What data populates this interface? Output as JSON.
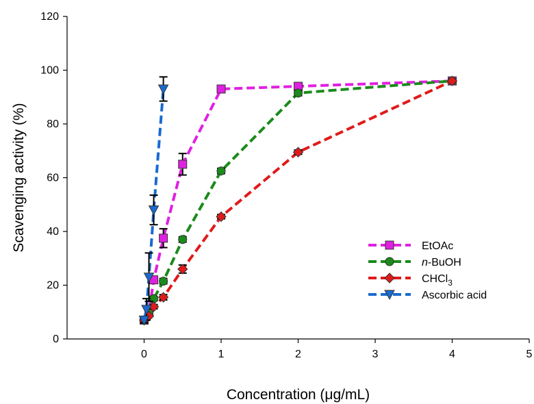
{
  "chart_data": {
    "type": "line",
    "title": "",
    "xlabel": "Concentration (μg/mL)",
    "ylabel": "Scavenging activity (%)",
    "xlim": [
      -1,
      5
    ],
    "ylim": [
      0,
      120
    ],
    "xticks": [
      0,
      1,
      2,
      3,
      4,
      5
    ],
    "yticks": [
      0,
      20,
      40,
      60,
      80,
      100,
      120
    ],
    "grid": false,
    "legend_position": "lower-right",
    "series": [
      {
        "name": "EtOAc",
        "color": "#e020e0",
        "marker": "square",
        "x": [
          0,
          0.0625,
          0.125,
          0.25,
          0.5,
          1,
          2,
          4
        ],
        "y": [
          7,
          10,
          22,
          37.5,
          65,
          93,
          94,
          96
        ],
        "err": [
          1,
          1,
          1,
          3.5,
          4,
          0.5,
          0.5,
          0.5
        ]
      },
      {
        "name": "n-BuOH",
        "name_italic": "n",
        "name_rest": "-BuOH",
        "color": "#1a8a1a",
        "marker": "circle",
        "x": [
          0,
          0.0625,
          0.125,
          0.25,
          0.5,
          1,
          2,
          4
        ],
        "y": [
          7,
          9.5,
          15,
          21.5,
          37,
          62.5,
          91.5,
          96
        ],
        "err": [
          0.5,
          0.5,
          0.8,
          1,
          1,
          1,
          1,
          0.5
        ]
      },
      {
        "name": "CHCl3",
        "name_main": "CHCl",
        "name_sub": "3",
        "color": "#e01a1a",
        "marker": "diamond",
        "x": [
          0,
          0.0625,
          0.125,
          0.25,
          0.5,
          1,
          2,
          4
        ],
        "y": [
          7,
          8.5,
          12,
          15.5,
          26,
          45.5,
          69.5,
          96
        ],
        "err": [
          0.5,
          0.5,
          0.8,
          1,
          1.5,
          0.8,
          0.8,
          0.5
        ]
      },
      {
        "name": "Ascorbic acid",
        "color": "#1a6ad0",
        "marker": "triangle-down",
        "x": [
          0,
          0.03125,
          0.0625,
          0.125,
          0.25
        ],
        "y": [
          7,
          11,
          23,
          48,
          93
        ],
        "err": [
          1,
          4,
          9,
          5.5,
          4.5
        ]
      }
    ]
  }
}
